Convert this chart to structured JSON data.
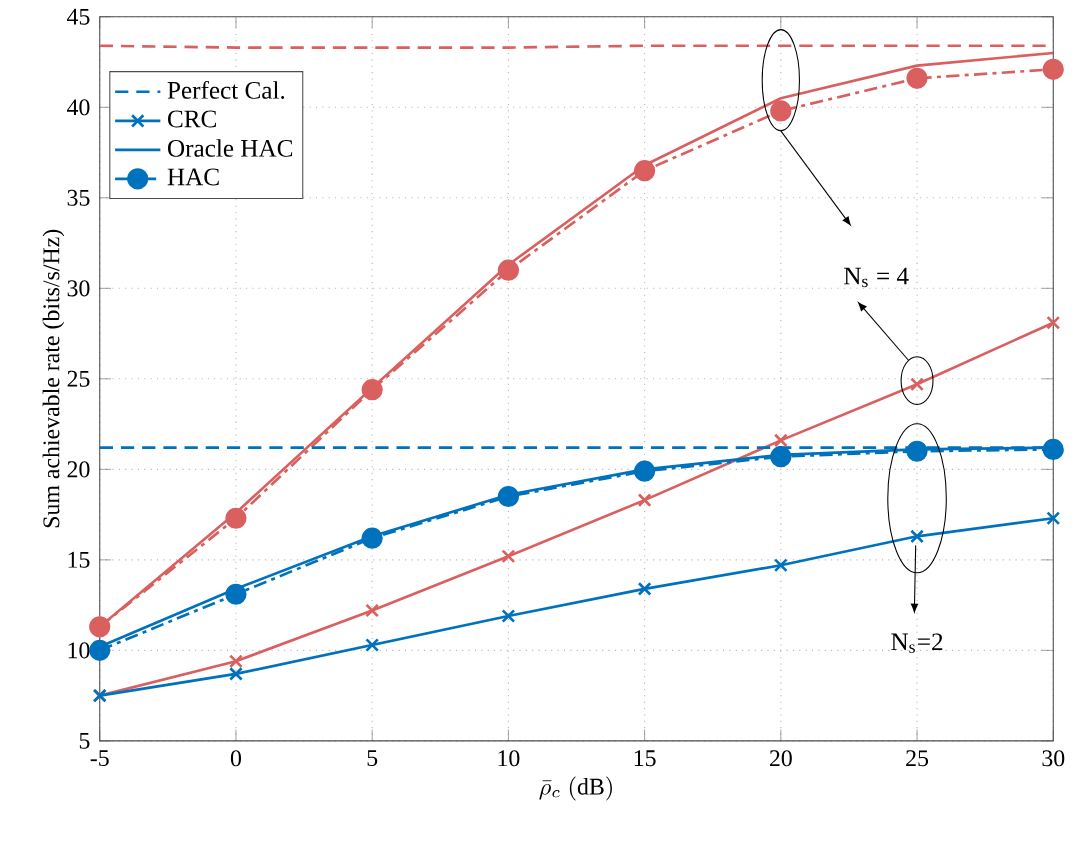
{
  "chart_data": {
    "type": "line",
    "xlabel": "\\bar{\\rho}_c\\ (\\mathrm{dB})",
    "ylabel": "Sum achievable rate (bits/s/Hz)",
    "x": [
      -5,
      0,
      5,
      10,
      15,
      20,
      25,
      30
    ],
    "xlim": [
      -5,
      30
    ],
    "ylim": [
      5,
      45
    ],
    "xticks": [
      -5,
      0,
      5,
      10,
      15,
      20,
      25,
      30
    ],
    "yticks": [
      5,
      10,
      15,
      20,
      25,
      30,
      35,
      40,
      45
    ],
    "grid": true,
    "legend": "top left",
    "annotations": [
      "N$_{s}$ = 4",
      "N$_{s}$=2"
    ],
    "series": [
      {
        "name": "Perfect Cal.",
        "color": "#0072bd",
        "line_style": "dashed",
        "marker": "none",
        "values": [
          21.2,
          21.2,
          21.2,
          21.2,
          21.2,
          21.2,
          21.2,
          21.2
        ]
      },
      {
        "name": "CRC",
        "color": "#0072bd",
        "line_style": "solid",
        "marker": "cross",
        "values": [
          7.5,
          8.7,
          10.3,
          11.9,
          13.4,
          14.7,
          16.3,
          17.3
        ]
      },
      {
        "name": "Oracle HAC",
        "color": "#0072bd",
        "line_style": "solid",
        "marker": "none",
        "values": [
          10.2,
          13.4,
          16.3,
          18.6,
          20.0,
          20.8,
          21.1,
          21.2
        ]
      },
      {
        "name": "HAC",
        "color": "#0072bd",
        "line_style": "dashdot",
        "marker": "circle",
        "values": [
          10.0,
          13.1,
          16.2,
          18.5,
          19.9,
          20.7,
          21.0,
          21.1
        ]
      },
      {
        "color": "#d9605f",
        "line_style": "dashed",
        "marker": "none",
        "values": [
          43.4,
          43.3,
          43.3,
          43.3,
          43.4,
          43.4,
          43.4,
          43.4
        ]
      },
      {
        "color": "#d9605f",
        "line_style": "solid",
        "marker": "cross",
        "values": [
          7.5,
          9.4,
          12.2,
          15.2,
          18.3,
          21.6,
          24.7,
          28.1
        ]
      },
      {
        "color": "#d9605f",
        "line_style": "solid",
        "marker": "none",
        "values": [
          11.3,
          17.6,
          24.5,
          31.3,
          36.8,
          40.5,
          42.3,
          43.0
        ]
      },
      {
        "color": "#d9605f",
        "line_style": "dashdot",
        "marker": "circle",
        "values": [
          11.3,
          17.3,
          24.4,
          31.0,
          36.5,
          39.8,
          41.6,
          42.1
        ]
      }
    ]
  }
}
